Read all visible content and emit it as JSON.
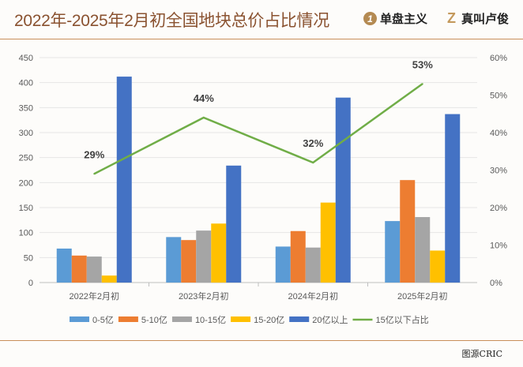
{
  "header": {
    "title": "2022年-2025年2月初全国地块总价占比情况",
    "brand1": "单盘主义",
    "brand1_mark": "1",
    "brand2": "真叫卢俊",
    "brand2_mark": "Z"
  },
  "footer": {
    "source": "图源CRIC"
  },
  "chart_data": {
    "type": "bar",
    "categories": [
      "2022年2月初",
      "2023年2月初",
      "2024年2月初",
      "2025年2月初"
    ],
    "series": [
      {
        "name": "0-5亿",
        "color": "#5b9bd5",
        "values": [
          68,
          91,
          72,
          123
        ]
      },
      {
        "name": "5-10亿",
        "color": "#ed7d31",
        "values": [
          54,
          85,
          103,
          205
        ]
      },
      {
        "name": "10-15亿",
        "color": "#a5a5a5",
        "values": [
          52,
          104,
          70,
          131
        ]
      },
      {
        "name": "15-20亿",
        "color": "#ffc000",
        "values": [
          14,
          118,
          160,
          64
        ]
      },
      {
        "name": "20亿以上",
        "color": "#4472c4",
        "values": [
          412,
          234,
          370,
          337
        ]
      }
    ],
    "line_series": {
      "name": "15亿以下占比",
      "color": "#70ad47",
      "values": [
        29,
        44,
        32,
        53
      ],
      "labels": [
        "29%",
        "44%",
        "32%",
        "53%"
      ],
      "axis": "right"
    },
    "ylim": [
      0,
      450
    ],
    "yticks": [
      "0",
      "50",
      "100",
      "150",
      "200",
      "250",
      "300",
      "350",
      "400",
      "450"
    ],
    "y2lim": [
      0,
      60
    ],
    "y2ticks": [
      "0%",
      "10%",
      "20%",
      "30%",
      "40%",
      "50%",
      "60%"
    ],
    "grid": true,
    "legend": "bottom"
  }
}
